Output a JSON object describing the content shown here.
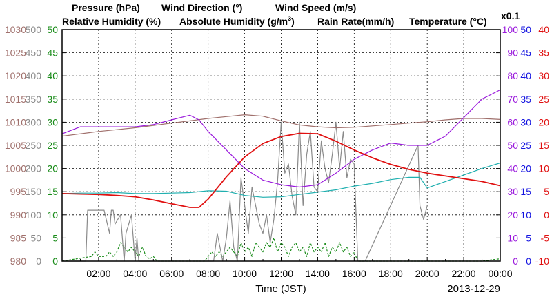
{
  "chart_data": {
    "type": "line",
    "date": "2013-12-29",
    "xlabel": "Time (JST)",
    "x_ticks": [
      "02:00",
      "04:00",
      "06:00",
      "08:00",
      "10:00",
      "12:00",
      "14:00",
      "16:00",
      "18:00",
      "20:00",
      "22:00",
      "00:00"
    ],
    "grid": true,
    "titles": {
      "pressure": "Pressure (hPa)",
      "wind_direction": "Wind Direction (°)",
      "wind_speed": "Wind Speed (m/s)",
      "relative_humidity": "Relative Humidity (%)",
      "absolute_humidity": "Absolute Humidity (g/m",
      "absolute_humidity_sup": "3",
      "absolute_humidity_end": ")",
      "rain_rate": "Rain Rate(mm/h)",
      "temperature": "Temperature (°C)",
      "rain_scale_note": "x0.1"
    },
    "axes": {
      "pressure": {
        "ticks": [
          "980",
          "985",
          "990",
          "995",
          "1000",
          "1005",
          "1010",
          "1015",
          "1020",
          "1025",
          "1030"
        ],
        "ylim": [
          980,
          1030
        ],
        "color": "#a0706c"
      },
      "wind_direction": {
        "ticks": [
          "0",
          "50",
          "100",
          "150",
          "200",
          "250",
          "300",
          "350",
          "400",
          "450",
          "500"
        ],
        "ylim": [
          0,
          500
        ],
        "color": "#8a8a8a"
      },
      "wind_speed": {
        "ticks": [
          "0",
          "5",
          "10",
          "15",
          "20",
          "25",
          "30",
          "35",
          "40",
          "45",
          "50"
        ],
        "ylim": [
          0,
          50
        ],
        "color": "#1a8c1a"
      },
      "relative_humidity": {
        "ticks": [
          "0",
          "10",
          "20",
          "30",
          "40",
          "50",
          "60",
          "70",
          "80",
          "90",
          "100"
        ],
        "ylim": [
          0,
          100
        ],
        "color": "#9a1adc"
      },
      "rain_rate": {
        "ticks": [
          "0",
          "5",
          "10",
          "15",
          "20",
          "25",
          "30",
          "35",
          "40",
          "45",
          "50"
        ],
        "ylim": [
          0,
          50
        ],
        "color": "#1414e0"
      },
      "temperature": {
        "ticks": [
          "-10",
          "-5",
          "0",
          "5",
          "10",
          "15",
          "20",
          "25",
          "30",
          "35",
          "40"
        ],
        "ylim": [
          -10,
          40
        ],
        "color": "#e01010"
      }
    },
    "series": [
      {
        "name": "Pressure (hPa)",
        "color": "#a0706c",
        "axis": "pressure",
        "x": [
          0,
          1,
          2,
          3,
          4,
          5,
          6,
          7,
          8,
          9,
          10,
          11,
          12,
          13,
          14,
          15,
          16,
          17,
          18,
          19,
          20,
          21,
          22,
          23,
          24
        ],
        "y": [
          1007,
          1007.5,
          1008,
          1008.4,
          1008.8,
          1009.3,
          1009.8,
          1010.3,
          1010.8,
          1011.2,
          1011.6,
          1011.3,
          1010.3,
          1009.4,
          1009,
          1008.8,
          1008.9,
          1009.2,
          1009.5,
          1009.8,
          1010.1,
          1010.5,
          1010.8,
          1010.8,
          1010.6
        ]
      },
      {
        "name": "Relative Humidity (%)",
        "color": "#9a1adc",
        "axis": "relative_humidity",
        "x": [
          0,
          1,
          2,
          3,
          4,
          5,
          6,
          7,
          7.5,
          8,
          9,
          10,
          11,
          12,
          13,
          14,
          15,
          16,
          17,
          18,
          19,
          19.5,
          20,
          21,
          22,
          23,
          23.5,
          24
        ],
        "y": [
          55,
          58,
          58,
          58,
          58,
          59,
          61,
          63,
          61,
          56,
          48,
          40,
          35,
          33,
          32,
          33,
          38,
          44,
          48,
          51,
          50,
          50,
          50,
          54,
          62,
          70,
          72,
          74
        ]
      },
      {
        "name": "Absolute Humidity (g/m3)",
        "color": "#20b0b0",
        "axis": "pressure",
        "x": [
          0,
          1,
          2,
          3,
          4,
          5,
          6,
          7,
          8,
          9,
          10,
          11,
          12,
          13,
          14,
          15,
          16,
          17,
          18,
          19,
          19.6,
          20,
          21,
          22,
          23,
          24
        ],
        "y": [
          994.6,
          994.7,
          994.7,
          994.8,
          994.6,
          994.6,
          994.7,
          994.8,
          995.2,
          995.1,
          994.2,
          993.8,
          993.9,
          994.4,
          994.9,
          995.4,
          996.2,
          996.8,
          997.6,
          998.1,
          998.1,
          995.8,
          997.2,
          998.6,
          1000,
          1001.2
        ]
      },
      {
        "name": "Temperature (°C)",
        "color": "#e01010",
        "axis": "temperature",
        "x": [
          0,
          1,
          2,
          3,
          4,
          5,
          6,
          7,
          7.5,
          8,
          9,
          10,
          11,
          12,
          13,
          14,
          15,
          16,
          17,
          18,
          19,
          20,
          21,
          22,
          23,
          24
        ],
        "y": [
          4.6,
          4.5,
          4.4,
          4.2,
          3.9,
          3.2,
          2.4,
          1.6,
          1.6,
          3.4,
          8.2,
          12.5,
          15.4,
          16.9,
          17.6,
          17.5,
          15.9,
          14,
          12.3,
          10.9,
          9.8,
          9,
          8.4,
          7.8,
          7.2,
          6.3
        ]
      },
      {
        "name": "Wind Direction (°)",
        "color": "#8a8a8a",
        "axis": "wind_direction",
        "x": [
          0,
          1.3,
          1.4,
          2.3,
          2.6,
          2.7,
          2.8,
          2.9,
          3.2,
          3.4,
          3.5,
          3.8,
          4,
          4.1,
          4.2,
          4.4,
          4.6,
          5,
          6,
          7,
          8.3,
          8.5,
          8.8,
          9,
          9.2,
          9.4,
          9.6,
          9.8,
          10,
          10.2,
          10.4,
          10.6,
          10.8,
          11,
          11.2,
          11.4,
          11.6,
          11.8,
          12,
          12.2,
          12.4,
          12.6,
          12.8,
          13,
          13.2,
          13.4,
          13.6,
          13.8,
          14,
          14.2,
          14.4,
          14.6,
          14.8,
          15,
          15.2,
          15.4,
          15.6,
          15.8,
          16,
          16.2,
          16.4,
          16.6,
          19.5,
          19.6,
          19.8,
          20
        ],
        "y": [
          0,
          0,
          110,
          110,
          60,
          110,
          110,
          80,
          100,
          0,
          60,
          100,
          0,
          50,
          0,
          0,
          0,
          0,
          0,
          0,
          0,
          60,
          0,
          50,
          130,
          30,
          0,
          180,
          120,
          60,
          160,
          120,
          80,
          60,
          100,
          40,
          90,
          170,
          300,
          190,
          210,
          140,
          100,
          300,
          120,
          230,
          280,
          160,
          150,
          260,
          200,
          170,
          230,
          300,
          200,
          280,
          180,
          220,
          210,
          0,
          0,
          0,
          250,
          120,
          90,
          120
        ]
      },
      {
        "name": "Wind Speed (m/s)",
        "color": "#1a8c1a",
        "axis": "wind_speed",
        "x": [
          0,
          1.6,
          1.8,
          2,
          2.2,
          2.4,
          2.6,
          2.8,
          3,
          3.2,
          3.4,
          3.6,
          3.8,
          4,
          4.2,
          4.4,
          4.6,
          4.8,
          5,
          5.2,
          6,
          7,
          7.8,
          8,
          8.2,
          8.4,
          8.6,
          8.8,
          9,
          9.2,
          9.4,
          9.6,
          9.8,
          10,
          10.2,
          10.4,
          10.6,
          10.8,
          11,
          11.2,
          11.4,
          11.6,
          11.8,
          12,
          12.2,
          12.4,
          12.6,
          12.8,
          13,
          13.2,
          13.4,
          13.6,
          13.8,
          14,
          14.2,
          14.4,
          14.6,
          14.8,
          15,
          15.2,
          15.4,
          15.6,
          15.8,
          16,
          16.2,
          17,
          18,
          19,
          20,
          21,
          22,
          23,
          24
        ],
        "y": [
          0,
          1,
          2,
          1,
          1,
          1,
          2,
          1,
          2,
          4,
          3,
          2,
          3,
          2,
          1,
          3,
          1,
          0.5,
          1,
          0,
          0,
          0,
          0,
          1,
          2,
          1,
          2,
          1,
          2,
          3,
          2,
          1,
          4,
          2,
          3,
          1,
          4,
          3,
          2,
          4,
          3,
          5,
          2,
          4,
          3,
          1,
          3,
          4,
          2,
          3,
          1,
          4,
          2,
          3,
          2,
          4,
          1,
          3,
          2,
          4,
          2,
          3,
          1,
          2,
          0,
          0,
          0,
          0,
          0,
          0,
          0,
          0,
          0.5
        ]
      }
    ]
  }
}
